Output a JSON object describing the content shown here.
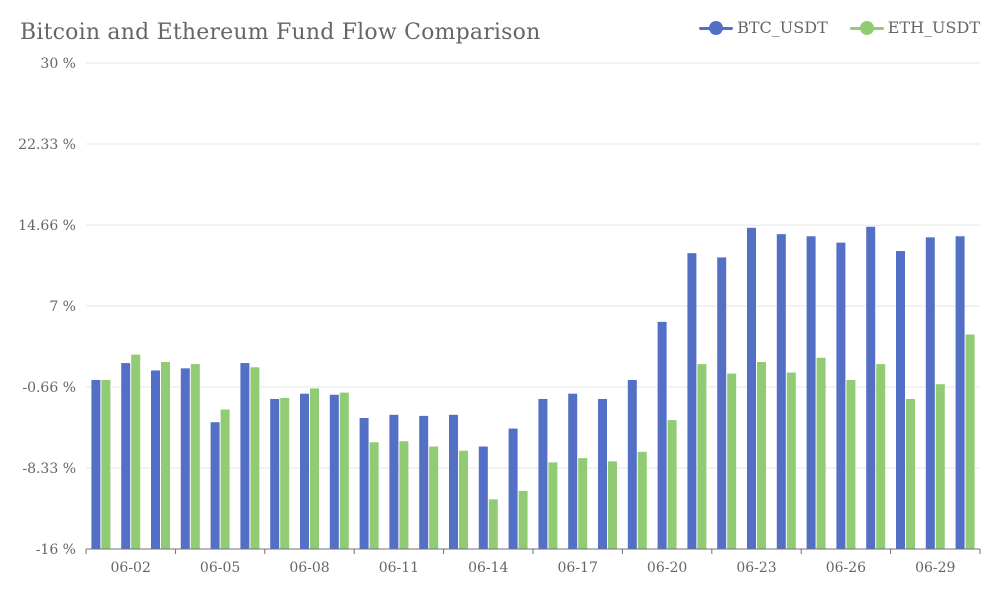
{
  "chart_data": {
    "type": "bar",
    "title": "Bitcoin and Ethereum Fund Flow Comparison",
    "xlabel": "",
    "ylabel": "",
    "ylim": [
      -16,
      30
    ],
    "yticks": [
      "30 %",
      "22.33 %",
      "14.66 %",
      "7 %",
      "-0.66 %",
      "-8.33 %",
      "-16 %"
    ],
    "ytick_values": [
      30,
      22.33,
      14.66,
      7,
      -0.66,
      -8.33,
      -16
    ],
    "categories": [
      "06-01",
      "06-02",
      "06-03",
      "06-04",
      "06-05",
      "06-06",
      "06-07",
      "06-08",
      "06-09",
      "06-10",
      "06-11",
      "06-12",
      "06-13",
      "06-14",
      "06-15",
      "06-16",
      "06-17",
      "06-18",
      "06-19",
      "06-20",
      "06-21",
      "06-22",
      "06-23",
      "06-24",
      "06-25",
      "06-26",
      "06-27",
      "06-28",
      "06-29",
      "06-30"
    ],
    "xtick_labels": [
      "06-02",
      "06-05",
      "06-08",
      "06-11",
      "06-14",
      "06-17",
      "06-20",
      "06-23",
      "06-26",
      "06-29"
    ],
    "legend_position": "top-right",
    "grid": true,
    "series": [
      {
        "name": "BTC_USDT",
        "color": "#5470c6",
        "values": [
          0,
          1.6,
          0.9,
          1.1,
          -4.0,
          1.6,
          -1.8,
          -1.3,
          -1.4,
          -3.6,
          -3.3,
          -3.4,
          -3.3,
          -6.3,
          -4.6,
          -1.8,
          -1.3,
          -1.8,
          0.0,
          5.5,
          12.0,
          11.6,
          14.4,
          13.8,
          13.6,
          13.0,
          14.5,
          12.2,
          13.5,
          13.6
        ]
      },
      {
        "name": "ETH_USDT",
        "color": "#91cc75",
        "values": [
          0,
          2.4,
          1.7,
          1.5,
          -2.8,
          1.2,
          -1.7,
          -0.8,
          -1.2,
          -5.9,
          -5.8,
          -6.3,
          -6.7,
          -11.3,
          -10.5,
          -7.8,
          -7.4,
          -7.7,
          -6.8,
          -3.8,
          1.5,
          0.6,
          1.7,
          0.7,
          2.1,
          0.0,
          1.5,
          -1.8,
          -0.4,
          4.3
        ]
      }
    ]
  }
}
